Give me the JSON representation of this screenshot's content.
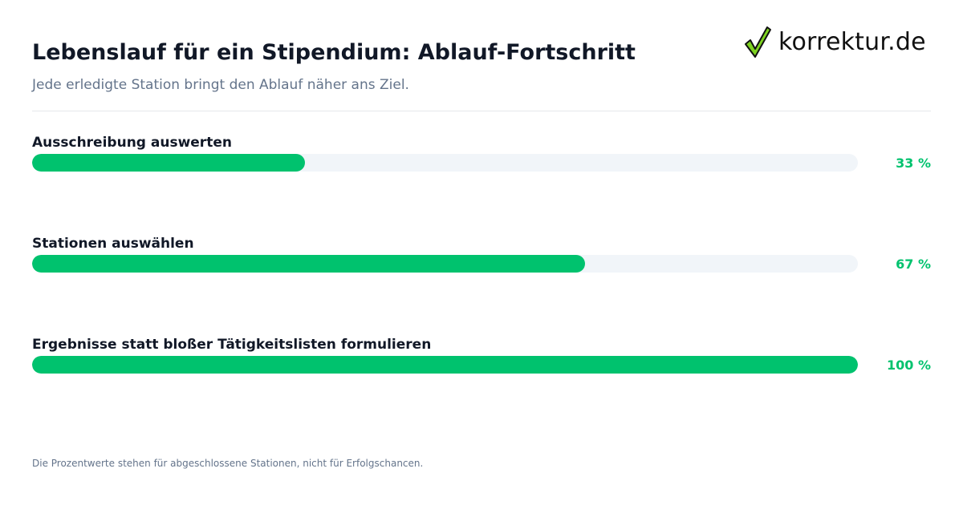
{
  "title": "Lebenslauf für ein Stipendium: Ablauf-Fortschritt",
  "subtitle": "Jede erledigte Station bringt den Ablauf näher ans Ziel.",
  "logo": {
    "text": "korrektur.de",
    "icon": "checkmark-icon",
    "check_color": "#7ed321"
  },
  "colors": {
    "accent": "#00c26e",
    "track": "#f1f5f9",
    "text": "#111827",
    "muted": "#64748b"
  },
  "footnote": "Die Prozentwerte stehen für abgeschlossene Stationen, nicht für Erfolgschancen.",
  "chart_data": {
    "type": "bar",
    "orientation": "horizontal",
    "categories": [
      "Ausschreibung auswerten",
      "Stationen auswählen",
      "Ergebnisse statt bloßer Tätigkeitslisten formulieren"
    ],
    "values": [
      33,
      67,
      100
    ],
    "value_labels": [
      "33 %",
      "67 %",
      "100 %"
    ],
    "xlim": [
      0,
      100
    ],
    "grid": false,
    "legend": "none"
  }
}
